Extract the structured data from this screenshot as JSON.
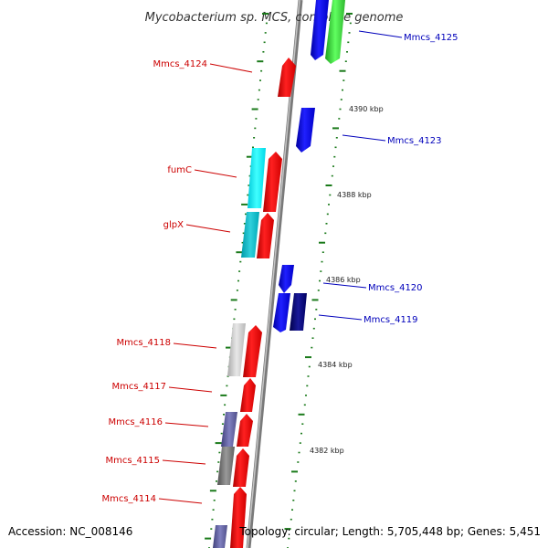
{
  "title": "Mycobacterium sp. MCS, complete genome",
  "footer": {
    "accession": "Accession: NC_008146",
    "topology": "Topology: circular; Length: 5,705,448 bp; Genes: 5,451"
  },
  "colors": {
    "left_label": "#cc0000",
    "right_label": "#0000bb",
    "backbone": "#8c8c8c",
    "tick": "#1a7a1a"
  },
  "kbp_labels": [
    "4390 kbp",
    "4388 kbp",
    "4386 kbp",
    "4384 kbp",
    "4382 kbp"
  ],
  "left_genes": [
    {
      "name": "Mmcs_4124",
      "color": "#ff0000"
    },
    {
      "name": "fumC",
      "color": "#ff0000"
    },
    {
      "name": "glpX",
      "color": "#ff0000"
    },
    {
      "name": "Mmcs_4118",
      "color": "#ff0000"
    },
    {
      "name": "Mmcs_4117",
      "color": "#ff0000"
    },
    {
      "name": "Mmcs_4116",
      "color": "#ff0000"
    },
    {
      "name": "Mmcs_4115",
      "color": "#ff0000"
    },
    {
      "name": "Mmcs_4114",
      "color": "#ff0000"
    }
  ],
  "right_genes": [
    {
      "name": "Mmcs_4125",
      "color": "#0000ff"
    },
    {
      "name": "Mmcs_4123",
      "color": "#0000ff"
    },
    {
      "name": "Mmcs_4120",
      "color": "#0000ff"
    },
    {
      "name": "Mmcs_4119",
      "color": "#000080"
    }
  ]
}
